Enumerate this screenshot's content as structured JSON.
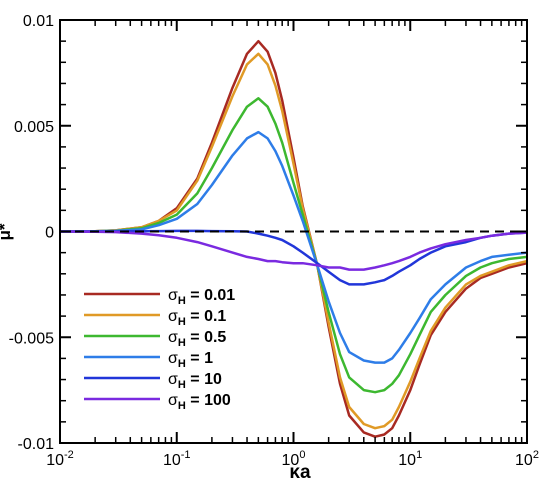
{
  "chart_data": {
    "type": "line",
    "title": "",
    "xlabel": "κa",
    "ylabel": "μ*",
    "xscale": "log",
    "xlim": [
      0.01,
      100
    ],
    "ylim": [
      -0.01,
      0.01
    ],
    "grid": false,
    "legend_position": "bottom-left",
    "x_ticks": [
      {
        "value": 0.01,
        "base": "10",
        "exp": "-2"
      },
      {
        "value": 0.1,
        "base": "10",
        "exp": "-1"
      },
      {
        "value": 1,
        "base": "10",
        "exp": "0"
      },
      {
        "value": 10,
        "base": "10",
        "exp": "1"
      },
      {
        "value": 100,
        "base": "10",
        "exp": "2"
      }
    ],
    "y_ticks": [
      {
        "value": 0.01,
        "label": "0.01"
      },
      {
        "value": 0.005,
        "label": "0.005"
      },
      {
        "value": 0,
        "label": "0"
      },
      {
        "value": -0.005,
        "label": "-0.005"
      },
      {
        "value": -0.01,
        "label": "-0.01"
      }
    ],
    "reference_line": {
      "y": 0,
      "style": "dashed"
    },
    "x": [
      0.01,
      0.02,
      0.03,
      0.05,
      0.07,
      0.1,
      0.15,
      0.2,
      0.3,
      0.4,
      0.5,
      0.6,
      0.7,
      0.8,
      1.0,
      1.2,
      1.6,
      2.0,
      2.5,
      3.0,
      4.0,
      5.0,
      6.0,
      7.0,
      8.0,
      10,
      12,
      15,
      20,
      30,
      40,
      50,
      70,
      100
    ],
    "series": [
      {
        "name": "σH = 0.01",
        "label_base": "σ",
        "label_sub": "H",
        "label_value": "= 0.01",
        "color": "#a82a22",
        "y": [
          0,
          1e-05,
          5e-05,
          0.0002,
          0.0005,
          0.0011,
          0.0025,
          0.0042,
          0.0068,
          0.0084,
          0.009,
          0.0085,
          0.0075,
          0.0062,
          0.0035,
          0.0012,
          -0.0016,
          -0.0045,
          -0.0072,
          -0.0087,
          -0.0095,
          -0.0097,
          -0.0096,
          -0.0093,
          -0.0087,
          -0.0075,
          -0.0063,
          -0.0049,
          -0.0038,
          -0.0027,
          -0.0022,
          -0.002,
          -0.0017,
          -0.0015
        ]
      },
      {
        "name": "σH = 0.1",
        "label_base": "σ",
        "label_sub": "H",
        "label_value": "= 0.1",
        "color": "#e09a26",
        "y": [
          0,
          1e-05,
          5e-05,
          0.0002,
          0.0005,
          0.001,
          0.0024,
          0.004,
          0.0064,
          0.0079,
          0.0084,
          0.0079,
          0.0069,
          0.0057,
          0.0032,
          0.0011,
          -0.0016,
          -0.0043,
          -0.0069,
          -0.0083,
          -0.0091,
          -0.0093,
          -0.0092,
          -0.0089,
          -0.0083,
          -0.0071,
          -0.006,
          -0.0047,
          -0.0036,
          -0.0025,
          -0.0021,
          -0.0019,
          -0.0016,
          -0.0014
        ]
      },
      {
        "name": "σH = 0.5",
        "label_base": "σ",
        "label_sub": "H",
        "label_value": "= 0.5",
        "color": "#3db830",
        "y": [
          0,
          1e-05,
          4e-05,
          0.00015,
          0.0004,
          0.0008,
          0.0018,
          0.003,
          0.0048,
          0.0059,
          0.0063,
          0.0059,
          0.0051,
          0.0042,
          0.0023,
          0.0008,
          -0.0016,
          -0.0038,
          -0.0058,
          -0.0069,
          -0.0075,
          -0.0076,
          -0.0075,
          -0.0072,
          -0.0068,
          -0.0058,
          -0.0049,
          -0.0038,
          -0.003,
          -0.0021,
          -0.0017,
          -0.0015,
          -0.0013,
          -0.0012
        ]
      },
      {
        "name": "σH = 1",
        "label_base": "σ",
        "label_sub": "H",
        "label_value": "= 1",
        "color": "#2e7de8",
        "y": [
          0,
          1e-05,
          3e-05,
          0.0001,
          0.0003,
          0.0006,
          0.0013,
          0.0022,
          0.0036,
          0.0044,
          0.0047,
          0.0044,
          0.0038,
          0.0031,
          0.0017,
          0.0005,
          -0.0016,
          -0.0033,
          -0.0048,
          -0.0057,
          -0.0061,
          -0.0062,
          -0.0062,
          -0.006,
          -0.0056,
          -0.0048,
          -0.0041,
          -0.0032,
          -0.0025,
          -0.0017,
          -0.0014,
          -0.0012,
          -0.0011,
          -0.001
        ]
      },
      {
        "name": "σH = 10",
        "label_base": "σ",
        "label_sub": "H",
        "label_value": "= 10",
        "color": "#2136d9",
        "y": [
          0,
          0,
          0,
          1e-05,
          2e-05,
          3e-05,
          3e-05,
          2e-05,
          1e-05,
          0,
          -0.0001,
          -0.0002,
          -0.0003,
          -0.0004,
          -0.0007,
          -0.001,
          -0.0015,
          -0.0019,
          -0.0023,
          -0.0025,
          -0.0025,
          -0.0024,
          -0.0023,
          -0.0021,
          -0.0019,
          -0.0016,
          -0.0013,
          -0.001,
          -0.0007,
          -0.0005,
          -0.0003,
          -0.0002,
          -0.0001,
          -5e-05
        ]
      },
      {
        "name": "σH = 100",
        "label_base": "σ",
        "label_sub": "H",
        "label_value": "= 100",
        "color": "#7a2ae0",
        "y": [
          0,
          -1e-05,
          -3e-05,
          -0.0001,
          -0.00018,
          -0.0003,
          -0.0005,
          -0.0007,
          -0.001,
          -0.0012,
          -0.0013,
          -0.0014,
          -0.0014,
          -0.00145,
          -0.0015,
          -0.0015,
          -0.0016,
          -0.0017,
          -0.0017,
          -0.0018,
          -0.0018,
          -0.0017,
          -0.0016,
          -0.0015,
          -0.0014,
          -0.0012,
          -0.001,
          -0.0008,
          -0.0006,
          -0.0004,
          -0.0003,
          -0.0002,
          -0.0001,
          -5e-05
        ]
      }
    ]
  }
}
